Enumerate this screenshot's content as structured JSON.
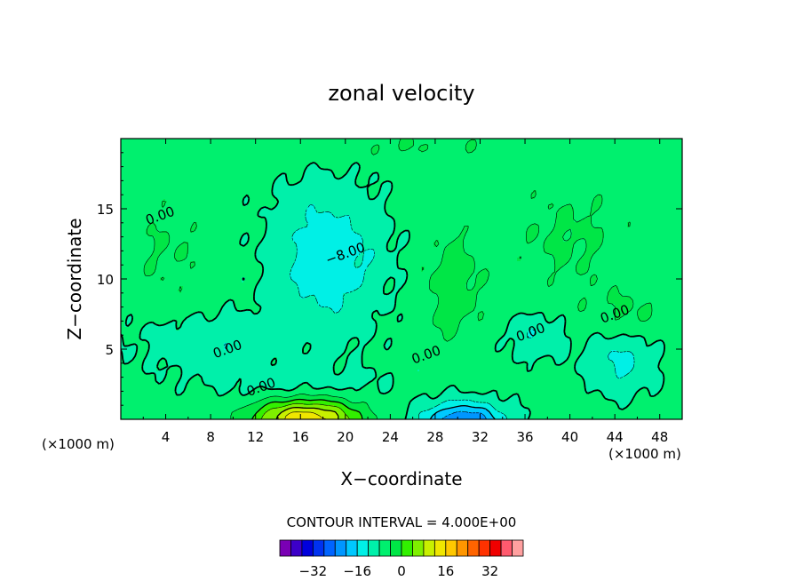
{
  "chart_data": {
    "type": "heatmap",
    "title": "zonal velocity",
    "xlabel": "X−coordinate",
    "ylabel": "Z−coordinate",
    "x_unit_left": "(×1000 m)",
    "x_unit_right": "(×1000 m)",
    "xlim": [
      0,
      50
    ],
    "ylim": [
      0,
      20
    ],
    "x_ticks": [
      4,
      8,
      12,
      16,
      20,
      24,
      28,
      32,
      36,
      40,
      44,
      48
    ],
    "y_ticks": [
      5,
      10,
      15
    ],
    "contour_interval_label": "CONTOUR INTERVAL = 4.000E+00",
    "contour_labels": [
      {
        "text": "0.00",
        "x": 3.5,
        "z": 14.5
      },
      {
        "text": "−8.00",
        "x": 20.0,
        "z": 11.8
      },
      {
        "text": "0.00",
        "x": 9.5,
        "z": 5.0
      },
      {
        "text": "0.00",
        "x": 12.5,
        "z": 2.3
      },
      {
        "text": "0.00",
        "x": 27.2,
        "z": 4.6
      },
      {
        "text": "0.00",
        "x": 36.5,
        "z": 6.2
      },
      {
        "text": "0.00",
        "x": 44.0,
        "z": 7.5
      }
    ],
    "colorbar": {
      "min": -36,
      "max": 36,
      "step": 4,
      "tick_values": [
        -32,
        -16,
        0,
        16,
        32
      ],
      "tick_labels": [
        "−32",
        "−16",
        "0",
        "16",
        "32"
      ],
      "colors": [
        "#7a00b4",
        "#3c00c8",
        "#0000dc",
        "#0032f0",
        "#0064ff",
        "#0096ff",
        "#00c8ff",
        "#00f0e6",
        "#00f0aa",
        "#00f06e",
        "#00e646",
        "#32f000",
        "#7ff000",
        "#c8f000",
        "#f0e600",
        "#ffc800",
        "#ff9600",
        "#ff6400",
        "#ff3200",
        "#f00000",
        "#ff5a6e",
        "#ffa0a0"
      ]
    },
    "field_features": [
      {
        "kind": "surface-jet",
        "x": 16.5,
        "z": 0.2,
        "value": 22
      },
      {
        "kind": "surface-jet",
        "x": 30.5,
        "z": 0.0,
        "value": -18
      },
      {
        "kind": "core",
        "x": 18.5,
        "z": 11.5,
        "value": -9
      },
      {
        "kind": "core",
        "x": 44.5,
        "z": 4.0,
        "value": -7
      },
      {
        "kind": "core",
        "x": 36.5,
        "z": 6.0,
        "value": -6
      },
      {
        "kind": "core",
        "x": 29.5,
        "z": 9.5,
        "value": 5
      },
      {
        "kind": "core",
        "x": 45.0,
        "z": 7.5,
        "value": 4
      }
    ]
  }
}
